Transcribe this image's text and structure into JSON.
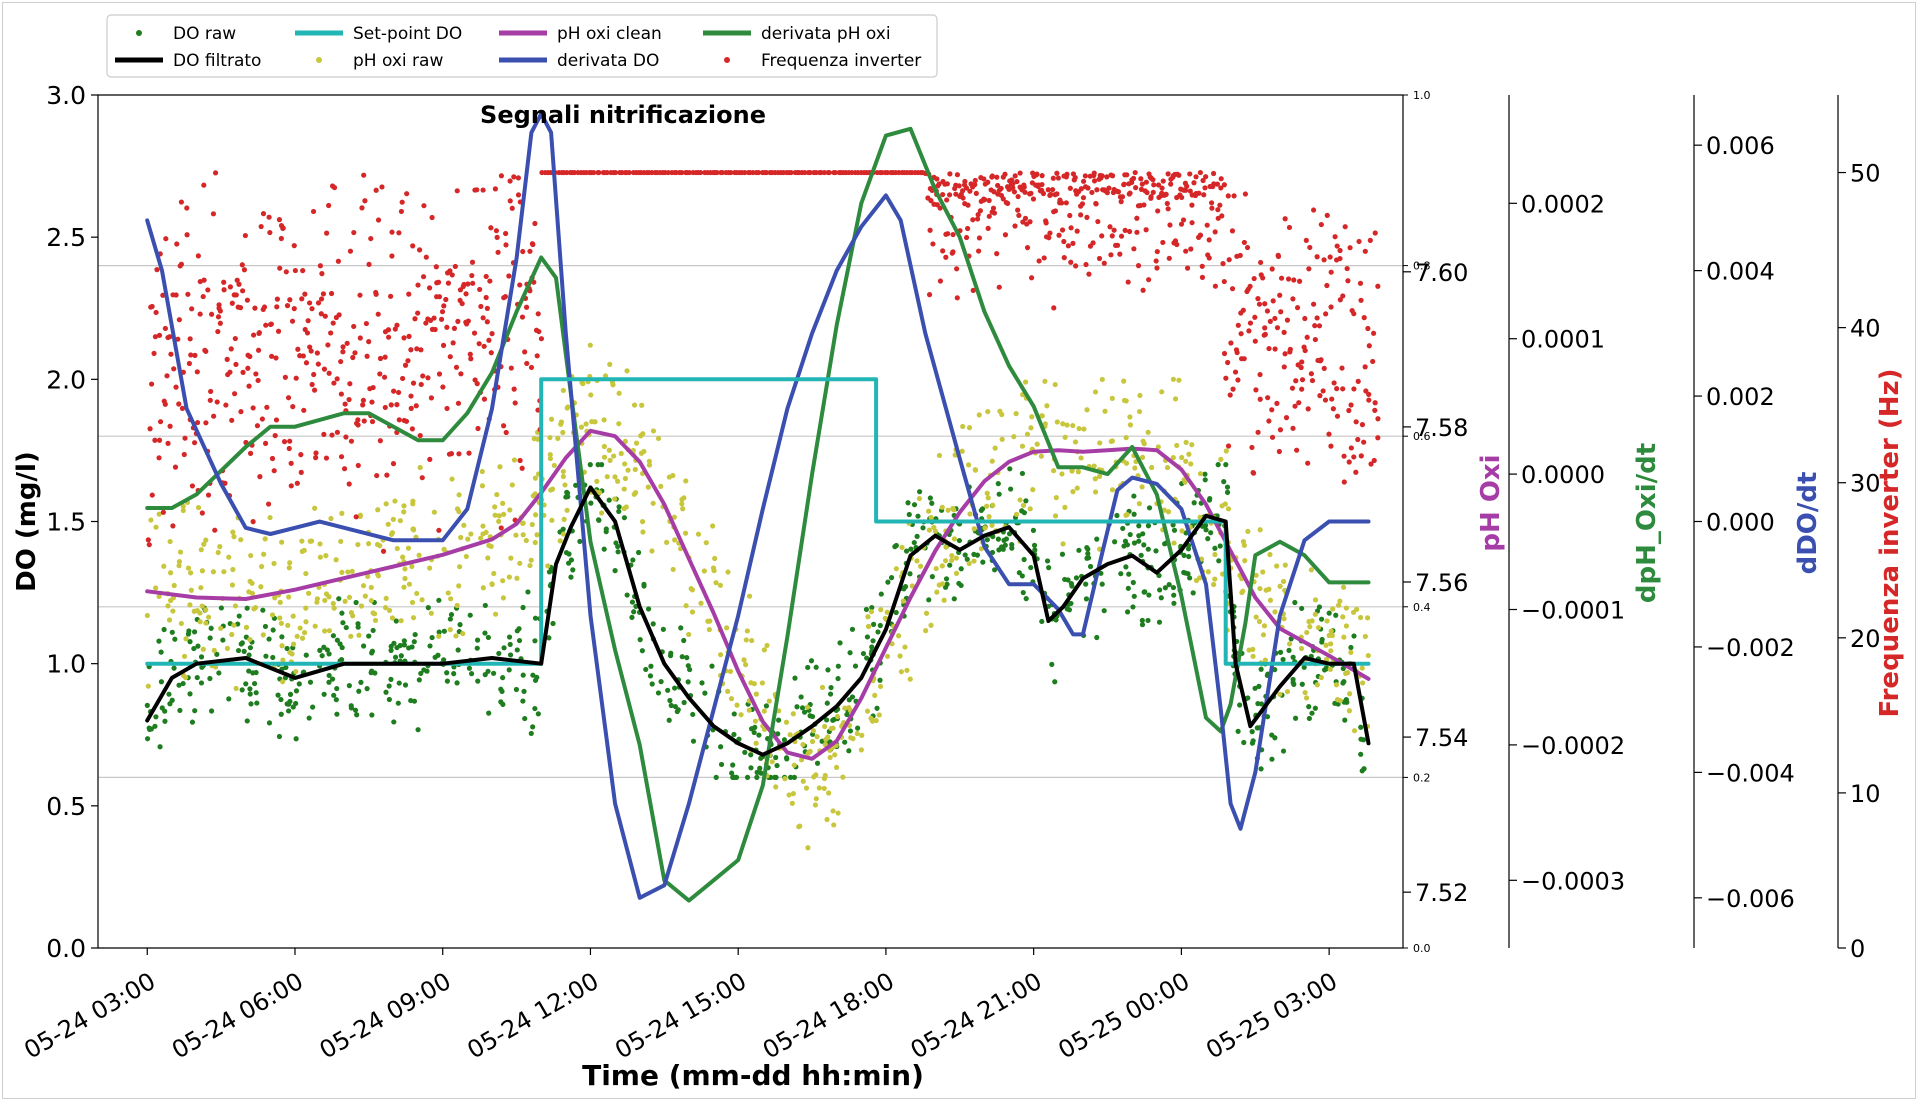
{
  "chart_data": {
    "type": "scatter",
    "title": "Segnali nitrificazione",
    "xlabel": "Time (mm-dd hh:min)",
    "x_ticks": [
      "05-24 03:00",
      "05-24 06:00",
      "05-24 09:00",
      "05-24 12:00",
      "05-24 15:00",
      "05-24 18:00",
      "05-24 21:00",
      "05-25 00:00",
      "05-25 03:00"
    ],
    "x_range_hours": [
      2.0,
      28.5
    ],
    "grid": "horizontal",
    "legend_position": "top-left",
    "axes": [
      {
        "id": "do",
        "label": "DO (mg/l)",
        "side": "left",
        "range": [
          0,
          3.0
        ],
        "ticks": [
          "0.0",
          "0.5",
          "1.0",
          "1.5",
          "2.0",
          "2.5",
          "3.0"
        ],
        "color": "#000000"
      },
      {
        "id": "aux",
        "label": "",
        "side": "right",
        "range": [
          0,
          1.0
        ],
        "ticks": [
          "0.0",
          "0.2",
          "0.4",
          "0.6",
          "0.8",
          "1.0"
        ],
        "color": "#000000"
      },
      {
        "id": "ph",
        "label": "pH Oxi",
        "side": "right",
        "range": [
          7.5128,
          7.6228
        ],
        "ticks": [
          "7.52",
          "7.54",
          "7.56",
          "7.58",
          "7.60"
        ],
        "color": "#a63da6"
      },
      {
        "id": "dph",
        "label": "dpH_Oxi/dt",
        "side": "right",
        "range": [
          -0.00035,
          0.00028
        ],
        "ticks": [
          "−0.0003",
          "−0.0002",
          "−0.0001",
          "0.0000",
          "0.0001",
          "0.0002"
        ],
        "color": "#2e8b3e"
      },
      {
        "id": "ddo",
        "label": "dDO/dt",
        "side": "right",
        "range": [
          -0.0068,
          0.0068
        ],
        "ticks": [
          "−0.006",
          "−0.004",
          "−0.002",
          "0.000",
          "0.002",
          "0.004",
          "0.006"
        ],
        "color": "#3a4fb0"
      },
      {
        "id": "freq",
        "label": "Frequenza inverter (Hz)",
        "side": "right",
        "range": [
          0,
          55
        ],
        "ticks": [
          "0",
          "10",
          "20",
          "30",
          "40",
          "50"
        ],
        "color": "#d62728"
      }
    ],
    "legend": [
      "DO raw",
      "DO filtrato",
      "Set-point DO",
      "pH oxi raw",
      "pH oxi clean",
      "derivata DO",
      "derivata pH oxi",
      "Frequenza inverter"
    ],
    "series": [
      {
        "name": "Set-point DO",
        "axis": "do",
        "style": "step",
        "color": "#22b5b5",
        "x": [
          3.0,
          11.0,
          11.0,
          17.8,
          17.8,
          24.9,
          24.9,
          27.8
        ],
        "y": [
          1.0,
          1.0,
          2.0,
          2.0,
          1.5,
          1.5,
          1.0,
          1.0
        ]
      },
      {
        "name": "DO filtrato",
        "axis": "do",
        "style": "line",
        "color": "#000000",
        "x": [
          3.0,
          3.5,
          4.0,
          5.0,
          6.0,
          7.0,
          8.0,
          9.0,
          10.0,
          11.0,
          11.3,
          11.6,
          12.0,
          12.5,
          13.0,
          13.5,
          14.0,
          14.5,
          15.0,
          15.5,
          16.0,
          16.5,
          17.0,
          17.5,
          18.0,
          18.5,
          19.0,
          19.5,
          20.0,
          20.5,
          21.0,
          21.3,
          21.6,
          22.0,
          22.5,
          23.0,
          23.5,
          24.0,
          24.5,
          24.9,
          25.1,
          25.4,
          26.0,
          26.5,
          27.0,
          27.5,
          27.8
        ],
        "y": [
          0.8,
          0.95,
          1.0,
          1.02,
          0.95,
          1.0,
          1.0,
          1.0,
          1.02,
          1.0,
          1.35,
          1.48,
          1.62,
          1.5,
          1.2,
          1.0,
          0.88,
          0.78,
          0.72,
          0.68,
          0.72,
          0.78,
          0.85,
          0.95,
          1.12,
          1.38,
          1.45,
          1.4,
          1.45,
          1.48,
          1.38,
          1.15,
          1.2,
          1.3,
          1.35,
          1.38,
          1.32,
          1.4,
          1.52,
          1.5,
          1.0,
          0.78,
          0.92,
          1.02,
          1.0,
          1.0,
          0.72
        ]
      },
      {
        "name": "pH oxi clean",
        "axis": "ph",
        "style": "line",
        "color": "#a63da6",
        "x": [
          3.0,
          4.0,
          5.0,
          6.0,
          7.0,
          8.0,
          9.0,
          10.0,
          10.5,
          11.0,
          11.5,
          12.0,
          12.5,
          13.0,
          13.5,
          14.0,
          14.5,
          15.0,
          15.5,
          16.0,
          16.5,
          17.0,
          17.5,
          18.0,
          18.5,
          19.0,
          19.5,
          20.0,
          20.5,
          21.0,
          21.5,
          22.0,
          22.5,
          23.0,
          23.5,
          24.0,
          24.5,
          25.0,
          25.5,
          26.0,
          27.0,
          27.8
        ],
        "y": [
          7.5588,
          7.558,
          7.5578,
          7.559,
          7.5605,
          7.562,
          7.5635,
          7.5655,
          7.5675,
          7.5715,
          7.576,
          7.5795,
          7.5788,
          7.5755,
          7.57,
          7.563,
          7.556,
          7.5485,
          7.542,
          7.538,
          7.5372,
          7.5395,
          7.545,
          7.5515,
          7.558,
          7.564,
          7.569,
          7.573,
          7.5755,
          7.5768,
          7.577,
          7.5768,
          7.577,
          7.5772,
          7.577,
          7.5745,
          7.57,
          7.564,
          7.558,
          7.554,
          7.5505,
          7.5475
        ]
      },
      {
        "name": "derivata DO",
        "axis": "ddo",
        "style": "line",
        "color": "#3a4fb0",
        "x": [
          3.0,
          3.3,
          3.8,
          4.5,
          5.0,
          5.5,
          6.0,
          6.5,
          7.0,
          8.0,
          8.5,
          9.0,
          9.5,
          10.0,
          10.5,
          10.8,
          11.0,
          11.2,
          11.5,
          12.0,
          12.5,
          13.0,
          13.5,
          14.0,
          14.5,
          15.0,
          15.5,
          16.0,
          16.5,
          17.0,
          17.5,
          18.0,
          18.3,
          18.8,
          19.5,
          20.0,
          20.5,
          21.0,
          21.5,
          21.8,
          22.0,
          22.3,
          22.7,
          23.0,
          23.5,
          24.0,
          24.5,
          24.8,
          25.0,
          25.2,
          25.5,
          26.0,
          26.5,
          27.0,
          27.8
        ],
        "y": [
          0.0048,
          0.004,
          0.0018,
          0.0006,
          -0.0001,
          -0.0002,
          -0.0001,
          0.0,
          -0.0001,
          -0.0003,
          -0.0003,
          -0.0003,
          0.0002,
          0.0018,
          0.0042,
          0.0062,
          0.0065,
          0.0062,
          0.003,
          -0.0015,
          -0.0045,
          -0.006,
          -0.0058,
          -0.0045,
          -0.003,
          -0.0015,
          0.0002,
          0.0018,
          0.003,
          0.004,
          0.0047,
          0.0052,
          0.0048,
          0.003,
          0.001,
          -0.0004,
          -0.001,
          -0.001,
          -0.0014,
          -0.0018,
          -0.0018,
          -0.0008,
          0.0005,
          0.0007,
          0.0006,
          0.0002,
          -0.001,
          -0.003,
          -0.0045,
          -0.0049,
          -0.004,
          -0.0015,
          -0.0003,
          0.0,
          0.0
        ]
      },
      {
        "name": "derivata pH oxi",
        "axis": "dph",
        "style": "line",
        "color": "#2e8b3e",
        "x": [
          3.0,
          3.5,
          4.0,
          5.0,
          5.5,
          6.0,
          7.0,
          7.5,
          8.0,
          8.5,
          9.0,
          9.5,
          10.0,
          10.5,
          11.0,
          11.3,
          11.6,
          12.0,
          12.5,
          13.0,
          13.5,
          14.0,
          14.5,
          15.0,
          15.5,
          16.0,
          16.5,
          17.0,
          17.5,
          18.0,
          18.5,
          19.0,
          19.5,
          20.0,
          20.5,
          21.0,
          21.5,
          22.0,
          22.5,
          23.0,
          23.5,
          24.0,
          24.5,
          24.8,
          25.0,
          25.3,
          25.5,
          26.0,
          26.5,
          27.0,
          27.8
        ],
        "y": [
          -2.5e-05,
          -2.5e-05,
          -1.5e-05,
          2e-05,
          3.5e-05,
          3.5e-05,
          4.5e-05,
          4.5e-05,
          3.5e-05,
          2.5e-05,
          2.5e-05,
          4.5e-05,
          7.5e-05,
          0.00012,
          0.00016,
          0.000145,
          6e-05,
          -5e-05,
          -0.00013,
          -0.0002,
          -0.0003,
          -0.000315,
          -0.0003,
          -0.000285,
          -0.00023,
          -0.00012,
          0.0,
          0.00011,
          0.0002,
          0.00025,
          0.000255,
          0.00021,
          0.000175,
          0.00012,
          8e-05,
          5e-05,
          5e-06,
          5e-06,
          0.0,
          2e-05,
          -1.5e-05,
          -9e-05,
          -0.00018,
          -0.00019,
          -0.00017,
          -0.00011,
          -6e-05,
          -5e-05,
          -6e-05,
          -8e-05,
          -8e-05
        ]
      }
    ],
    "scatter_series": [
      {
        "name": "DO raw",
        "axis": "do",
        "color": "#1e7d1e",
        "spread": 0.18,
        "seed": 7,
        "follows": "DO filtrato",
        "range": [
          0.6,
          1.7
        ]
      },
      {
        "name": "pH oxi raw",
        "axis": "do",
        "color": "#c8c63c",
        "spread": 0.22,
        "seed": 11,
        "follows": "pH oxi clean",
        "range": [
          0.15,
          2.5
        ]
      },
      {
        "name": "Frequenza inverter",
        "axis": "freq",
        "color": "#d62728",
        "segments": [
          {
            "x": [
              3.0,
              11.0
            ],
            "center": [
              37.0,
              40.0
            ],
            "spread": 7.5
          },
          {
            "x": [
              11.0,
              18.8
            ],
            "center": [
              50.0,
              50.0
            ],
            "spread": 0.0
          },
          {
            "x": [
              18.8,
              24.8
            ],
            "center": [
              48.5,
              48.5
            ],
            "spread": 4.0
          },
          {
            "x": [
              24.8,
              28.0
            ],
            "center": [
              41.0,
              38.0
            ],
            "spread": 7.5
          }
        ]
      }
    ]
  }
}
